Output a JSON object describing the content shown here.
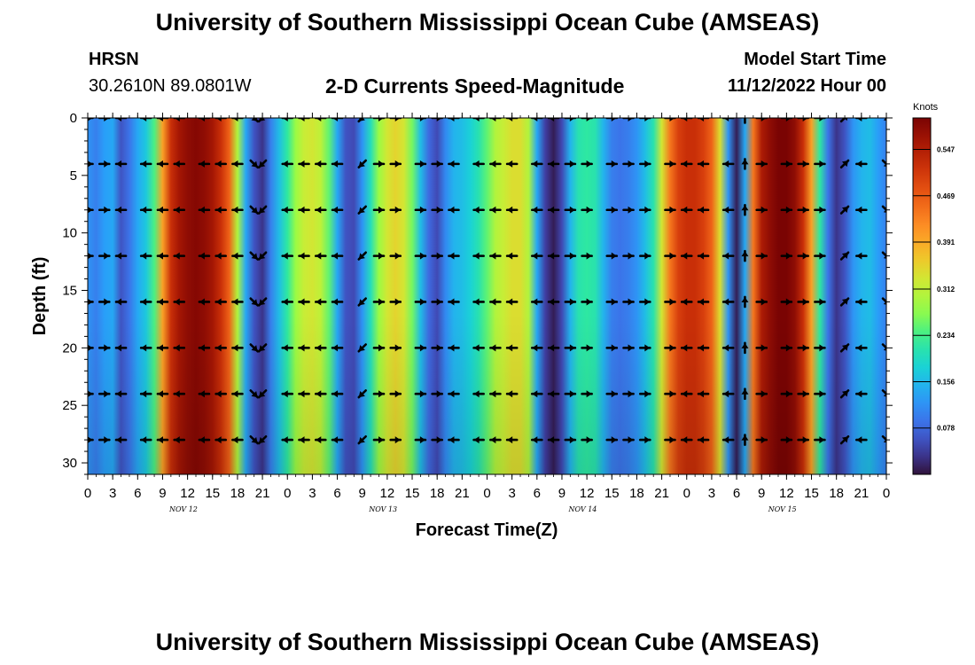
{
  "header": {
    "title": "University of Southern Mississippi Ocean Cube (AMSEAS)",
    "station": "HRSN",
    "coordinates": "30.2610N  89.0801W",
    "subtitle": "2-D Currents Speed-Magnitude",
    "model_start_label": "Model Start Time",
    "model_start_value": "11/12/2022 Hour 00"
  },
  "footer": {
    "title": "University of Southern Mississippi Ocean Cube (AMSEAS)"
  },
  "chart_data": {
    "type": "heatmap",
    "xlabel": "Forecast Time(Z)",
    "ylabel": "Depth (ft)",
    "x_range_hours": [
      0,
      96
    ],
    "y_range_ft": [
      0,
      31
    ],
    "y_ticks": [
      0,
      5,
      10,
      15,
      20,
      25,
      30
    ],
    "x_tick_labels": [
      "0",
      "3",
      "6",
      "9",
      "12",
      "15",
      "18",
      "21",
      "0",
      "3",
      "6",
      "9",
      "12",
      "15",
      "18",
      "21",
      "0",
      "3",
      "6",
      "9",
      "12",
      "15",
      "18",
      "21",
      "0",
      "3",
      "6",
      "9",
      "12",
      "15",
      "18",
      "21",
      "0"
    ],
    "day_labels": [
      {
        "label": "NOV 12",
        "hour": 11.5
      },
      {
        "label": "NOV 13",
        "hour": 35.5
      },
      {
        "label": "NOV 14",
        "hour": 59.5
      },
      {
        "label": "NOV 15",
        "hour": 83.5
      }
    ],
    "colorbar": {
      "unit": "Knots",
      "ticks": [
        0.078,
        0.156,
        0.234,
        0.312,
        0.391,
        0.469,
        0.547
      ],
      "min": 0.0,
      "max": 0.6
    },
    "speed_profile_by_hour": [
      {
        "h": 0,
        "v": 0.12
      },
      {
        "h": 1,
        "v": 0.1
      },
      {
        "h": 2,
        "v": 0.13
      },
      {
        "h": 3,
        "v": 0.14
      },
      {
        "h": 4,
        "v": 0.06
      },
      {
        "h": 5,
        "v": 0.09
      },
      {
        "h": 6,
        "v": 0.14
      },
      {
        "h": 7,
        "v": 0.17
      },
      {
        "h": 8,
        "v": 0.24
      },
      {
        "h": 9,
        "v": 0.4
      },
      {
        "h": 10,
        "v": 0.52
      },
      {
        "h": 11,
        "v": 0.56
      },
      {
        "h": 12,
        "v": 0.58
      },
      {
        "h": 13,
        "v": 0.59
      },
      {
        "h": 14,
        "v": 0.58
      },
      {
        "h": 15,
        "v": 0.56
      },
      {
        "h": 16,
        "v": 0.52
      },
      {
        "h": 17,
        "v": 0.46
      },
      {
        "h": 18,
        "v": 0.3
      },
      {
        "h": 19,
        "v": 0.14
      },
      {
        "h": 20,
        "v": 0.06
      },
      {
        "h": 21,
        "v": 0.03
      },
      {
        "h": 22,
        "v": 0.1
      },
      {
        "h": 23,
        "v": 0.16
      },
      {
        "h": 24,
        "v": 0.22
      },
      {
        "h": 25,
        "v": 0.28
      },
      {
        "h": 26,
        "v": 0.32
      },
      {
        "h": 27,
        "v": 0.33
      },
      {
        "h": 28,
        "v": 0.31
      },
      {
        "h": 29,
        "v": 0.25
      },
      {
        "h": 30,
        "v": 0.14
      },
      {
        "h": 31,
        "v": 0.06
      },
      {
        "h": 32,
        "v": 0.05
      },
      {
        "h": 33,
        "v": 0.12
      },
      {
        "h": 34,
        "v": 0.2
      },
      {
        "h": 35,
        "v": 0.28
      },
      {
        "h": 36,
        "v": 0.33
      },
      {
        "h": 37,
        "v": 0.35
      },
      {
        "h": 38,
        "v": 0.33
      },
      {
        "h": 39,
        "v": 0.26
      },
      {
        "h": 40,
        "v": 0.16
      },
      {
        "h": 41,
        "v": 0.08
      },
      {
        "h": 42,
        "v": 0.05
      },
      {
        "h": 43,
        "v": 0.11
      },
      {
        "h": 44,
        "v": 0.15
      },
      {
        "h": 45,
        "v": 0.16
      },
      {
        "h": 46,
        "v": 0.18
      },
      {
        "h": 47,
        "v": 0.21
      },
      {
        "h": 48,
        "v": 0.25
      },
      {
        "h": 49,
        "v": 0.3
      },
      {
        "h": 50,
        "v": 0.32
      },
      {
        "h": 51,
        "v": 0.34
      },
      {
        "h": 52,
        "v": 0.34
      },
      {
        "h": 53,
        "v": 0.3
      },
      {
        "h": 54,
        "v": 0.14
      },
      {
        "h": 55,
        "v": 0.04
      },
      {
        "h": 56,
        "v": 0.01
      },
      {
        "h": 57,
        "v": 0.05
      },
      {
        "h": 58,
        "v": 0.15
      },
      {
        "h": 59,
        "v": 0.21
      },
      {
        "h": 60,
        "v": 0.22
      },
      {
        "h": 61,
        "v": 0.21
      },
      {
        "h": 62,
        "v": 0.15
      },
      {
        "h": 63,
        "v": 0.1
      },
      {
        "h": 64,
        "v": 0.09
      },
      {
        "h": 65,
        "v": 0.1
      },
      {
        "h": 66,
        "v": 0.12
      },
      {
        "h": 67,
        "v": 0.16
      },
      {
        "h": 68,
        "v": 0.21
      },
      {
        "h": 69,
        "v": 0.33
      },
      {
        "h": 70,
        "v": 0.44
      },
      {
        "h": 71,
        "v": 0.5
      },
      {
        "h": 72,
        "v": 0.52
      },
      {
        "h": 73,
        "v": 0.52
      },
      {
        "h": 74,
        "v": 0.5
      },
      {
        "h": 75,
        "v": 0.46
      },
      {
        "h": 76,
        "v": 0.34
      },
      {
        "h": 77,
        "v": 0.12
      },
      {
        "h": 78,
        "v": 0.01
      },
      {
        "h": 79,
        "v": 0.14
      },
      {
        "h": 80,
        "v": 0.44
      },
      {
        "h": 81,
        "v": 0.55
      },
      {
        "h": 82,
        "v": 0.58
      },
      {
        "h": 83,
        "v": 0.6
      },
      {
        "h": 84,
        "v": 0.6
      },
      {
        "h": 85,
        "v": 0.58
      },
      {
        "h": 86,
        "v": 0.52
      },
      {
        "h": 87,
        "v": 0.4
      },
      {
        "h": 88,
        "v": 0.22
      },
      {
        "h": 89,
        "v": 0.09
      },
      {
        "h": 90,
        "v": 0.03
      },
      {
        "h": 91,
        "v": 0.06
      },
      {
        "h": 92,
        "v": 0.12
      },
      {
        "h": 93,
        "v": 0.15
      },
      {
        "h": 94,
        "v": 0.16
      },
      {
        "h": 95,
        "v": 0.13
      },
      {
        "h": 96,
        "v": 0.1
      }
    ],
    "arrow_depths_ft": [
      0,
      4,
      8,
      12,
      16,
      20,
      24,
      28
    ],
    "arrow_direction_by_hour": [
      {
        "h": 0,
        "dir": "E"
      },
      {
        "h": 2,
        "dir": "E"
      },
      {
        "h": 4,
        "dir": "W"
      },
      {
        "h": 7,
        "dir": "W"
      },
      {
        "h": 9,
        "dir": "W"
      },
      {
        "h": 11,
        "dir": "W"
      },
      {
        "h": 14,
        "dir": "W"
      },
      {
        "h": 16,
        "dir": "W"
      },
      {
        "h": 18,
        "dir": "W"
      },
      {
        "h": 20,
        "dir": "SE"
      },
      {
        "h": 21,
        "dir": "SW"
      },
      {
        "h": 24,
        "dir": "W"
      },
      {
        "h": 26,
        "dir": "W"
      },
      {
        "h": 28,
        "dir": "W"
      },
      {
        "h": 30,
        "dir": "W"
      },
      {
        "h": 33,
        "dir": "SW"
      },
      {
        "h": 35,
        "dir": "E"
      },
      {
        "h": 37,
        "dir": "E"
      },
      {
        "h": 40,
        "dir": "E"
      },
      {
        "h": 42,
        "dir": "E"
      },
      {
        "h": 44,
        "dir": "W"
      },
      {
        "h": 47,
        "dir": "W"
      },
      {
        "h": 49,
        "dir": "W"
      },
      {
        "h": 51,
        "dir": "W"
      },
      {
        "h": 54,
        "dir": "W"
      },
      {
        "h": 56,
        "dir": "W"
      },
      {
        "h": 58,
        "dir": "E"
      },
      {
        "h": 60,
        "dir": "E"
      },
      {
        "h": 63,
        "dir": "E"
      },
      {
        "h": 65,
        "dir": "E"
      },
      {
        "h": 67,
        "dir": "E"
      },
      {
        "h": 70,
        "dir": "E"
      },
      {
        "h": 72,
        "dir": "W"
      },
      {
        "h": 74,
        "dir": "W"
      },
      {
        "h": 77,
        "dir": "W"
      },
      {
        "h": 79,
        "dir": "N"
      },
      {
        "h": 81,
        "dir": "E"
      },
      {
        "h": 84,
        "dir": "E"
      },
      {
        "h": 86,
        "dir": "E"
      },
      {
        "h": 88,
        "dir": "E"
      },
      {
        "h": 91,
        "dir": "NE"
      },
      {
        "h": 93,
        "dir": "W"
      },
      {
        "h": 96,
        "dir": "SE"
      }
    ]
  }
}
